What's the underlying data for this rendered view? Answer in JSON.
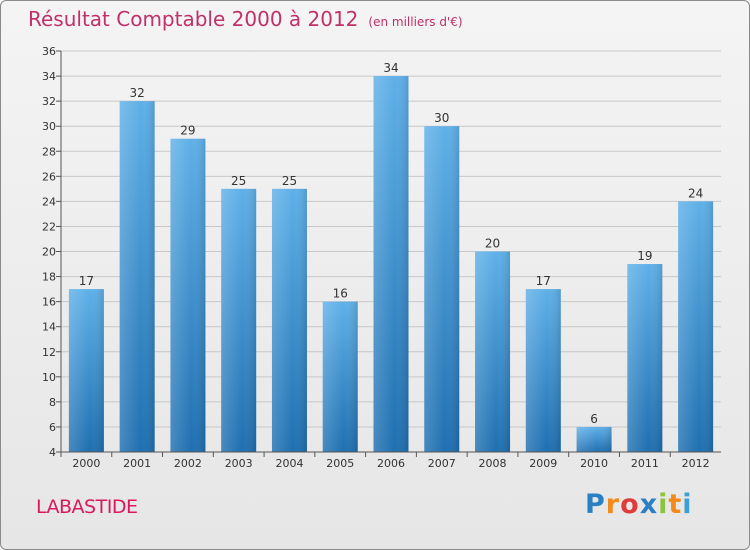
{
  "title": "Résultat Comptable 2000 à 2012",
  "unit": "(en milliers d'€)",
  "commune": "LABASTIDE",
  "logo": {
    "text": "Proxiti",
    "letters": [
      "P",
      "r",
      "o",
      "x",
      "i",
      "t",
      "i"
    ],
    "colors": [
      "#2b7fc4",
      "#f28a1c",
      "#e03b3b",
      "#2b7fc4",
      "#8cc43c",
      "#f28a1c",
      "#3aa0d8"
    ]
  },
  "colors": {
    "bar_top": "#5fb0e8",
    "bar_bottom": "#1f6fb0",
    "title": "#c0306a",
    "commune": "#d9185d"
  },
  "chart_data": {
    "type": "bar",
    "title": "Résultat Comptable 2000 à 2012 (en milliers d'€)",
    "categories": [
      "2000",
      "2001",
      "2002",
      "2003",
      "2004",
      "2005",
      "2006",
      "2007",
      "2008",
      "2009",
      "2010",
      "2011",
      "2012"
    ],
    "values": [
      17,
      32,
      29,
      25,
      25,
      16,
      34,
      30,
      20,
      17,
      6,
      19,
      24
    ],
    "ylim": [
      4,
      36
    ],
    "yticks": [
      4,
      6,
      8,
      10,
      12,
      14,
      16,
      18,
      20,
      22,
      24,
      26,
      28,
      30,
      32,
      34,
      36
    ],
    "grid": true,
    "xlabel": "",
    "ylabel": ""
  }
}
